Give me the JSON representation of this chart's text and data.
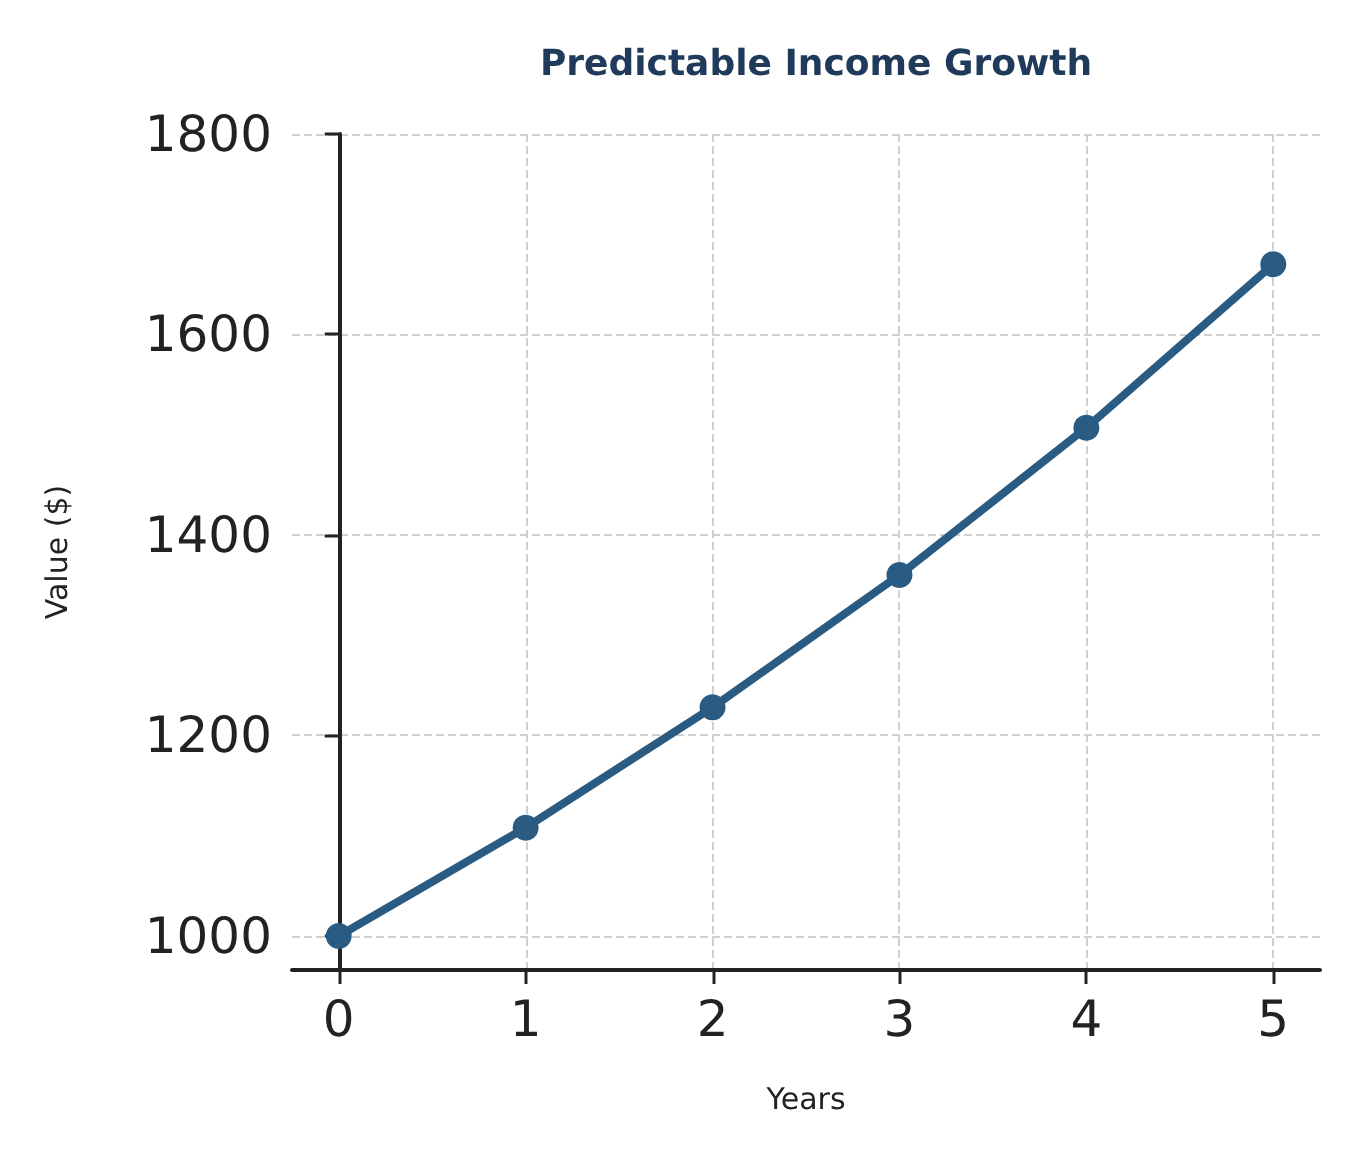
{
  "chart_data": {
    "type": "line",
    "title": "Predictable Income Growth",
    "xlabel": "Years",
    "ylabel": "Value ($)",
    "x": [
      0,
      1,
      2,
      3,
      4,
      5
    ],
    "series": [
      {
        "color": "#2a5b82",
        "values": [
          1000,
          1108,
          1228,
          1360,
          1507,
          1670
        ]
      }
    ],
    "xlim": [
      -0.25,
      5.25
    ],
    "xticks": [
      0,
      1,
      2,
      3,
      4,
      5
    ],
    "ylim": [
      966,
      1800
    ],
    "yticks": [
      1000,
      1200,
      1400,
      1600,
      1800
    ],
    "grid": true,
    "marker": "circle",
    "line_style": "solid"
  }
}
